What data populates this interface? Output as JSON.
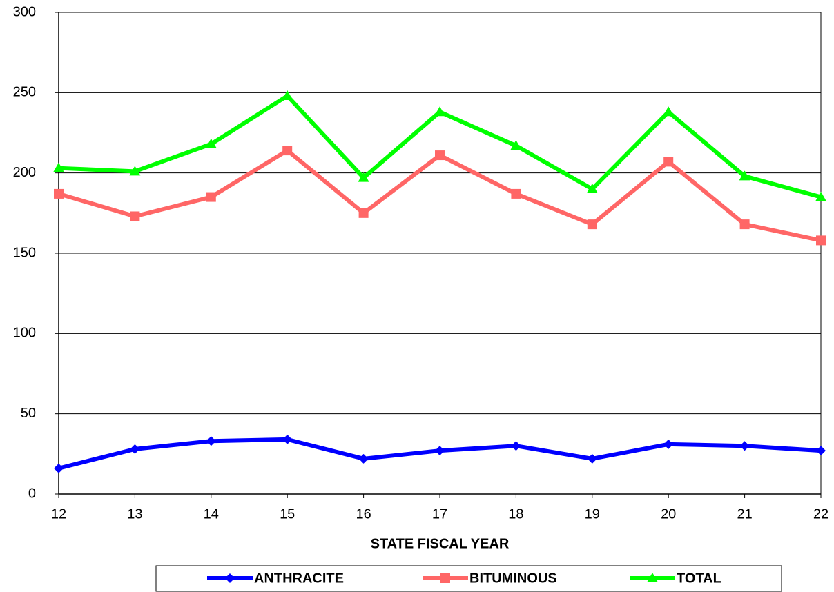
{
  "chart_data": {
    "type": "line",
    "x_label": "STATE FISCAL YEAR",
    "x": [
      12,
      13,
      14,
      15,
      16,
      17,
      18,
      19,
      20,
      21,
      22
    ],
    "xlim": [
      12,
      22
    ],
    "xticks": [
      12,
      13,
      14,
      15,
      16,
      17,
      18,
      19,
      20,
      21,
      22
    ],
    "ylim": [
      0,
      300
    ],
    "yticks": [
      0,
      50,
      100,
      150,
      200,
      250,
      300
    ],
    "grid": true,
    "legend": "bottom",
    "series": [
      {
        "name": "ANTHRACITE",
        "color": "#0000ff",
        "marker": "diamond",
        "values": [
          16,
          28,
          33,
          34,
          22,
          27,
          30,
          22,
          31,
          30,
          27
        ]
      },
      {
        "name": "BITUMINOUS",
        "color": "#ff6666",
        "marker": "square",
        "values": [
          187,
          173,
          185,
          214,
          175,
          211,
          187,
          168,
          207,
          168,
          158
        ]
      },
      {
        "name": "TOTAL",
        "color": "#00ff00",
        "marker": "triangle",
        "values": [
          203,
          201,
          218,
          248,
          197,
          238,
          217,
          190,
          238,
          198,
          185
        ]
      }
    ]
  }
}
